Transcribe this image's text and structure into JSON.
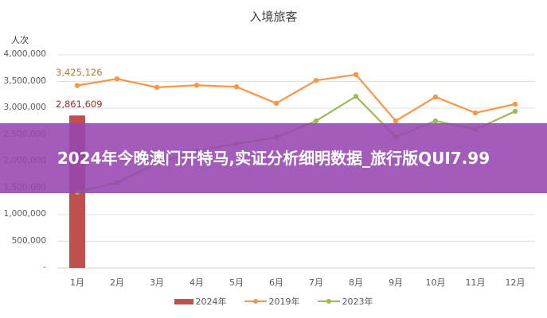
{
  "chart": {
    "title": "入境旅客",
    "y_unit": "人次",
    "y_ticks": [
      "4,000,000",
      "3,500,000",
      "3,000,000",
      "2,500,000",
      "2,000,000",
      "1,500,000",
      "1,000,000",
      "500,000",
      "-"
    ],
    "x_ticks": [
      "1月",
      "2月",
      "3月",
      "4月",
      "5月",
      "6月",
      "7月",
      "8月",
      "9月",
      "10月",
      "11月",
      "12月"
    ],
    "labels": {
      "label_2019_jan": "3,425,126",
      "label_2024_jan": "2,861,609"
    },
    "legend": [
      {
        "label": "2024年",
        "color": "#C0504D",
        "kind": "bar"
      },
      {
        "label": "2019年",
        "color": "#F79646",
        "kind": "line"
      },
      {
        "label": "2023年",
        "color": "#9BBB59",
        "kind": "line"
      }
    ]
  },
  "banner": {
    "text": "2024年今晚澳门开特马,实证分析细明数据_旅行版QUI7.99"
  },
  "chart_data": {
    "type": "bar+line",
    "title": "入境旅客",
    "xlabel": "",
    "ylabel": "人次",
    "ylim": [
      0,
      4000000
    ],
    "grid": true,
    "legend_position": "bottom",
    "categories": [
      "1月",
      "2月",
      "3月",
      "4月",
      "5月",
      "6月",
      "7月",
      "8月",
      "9月",
      "10月",
      "11月",
      "12月"
    ],
    "series": [
      {
        "name": "2024年",
        "type": "bar",
        "color": "#C0504D",
        "values": [
          2861609,
          null,
          null,
          null,
          null,
          null,
          null,
          null,
          null,
          null,
          null,
          null
        ]
      },
      {
        "name": "2019年",
        "type": "line",
        "color": "#F79646",
        "values": [
          3425126,
          3550000,
          3390000,
          3430000,
          3400000,
          3090000,
          3520000,
          3630000,
          2760000,
          3210000,
          2910000,
          3075000
        ]
      },
      {
        "name": "2023年",
        "type": "line",
        "color": "#9BBB59",
        "values": [
          1420000,
          1600000,
          1960000,
          2200000,
          2330000,
          2450000,
          2760000,
          3220000,
          2460000,
          2760000,
          2600000,
          2940000
        ]
      }
    ],
    "annotations": [
      "3,425,126",
      "2,861,609"
    ]
  }
}
